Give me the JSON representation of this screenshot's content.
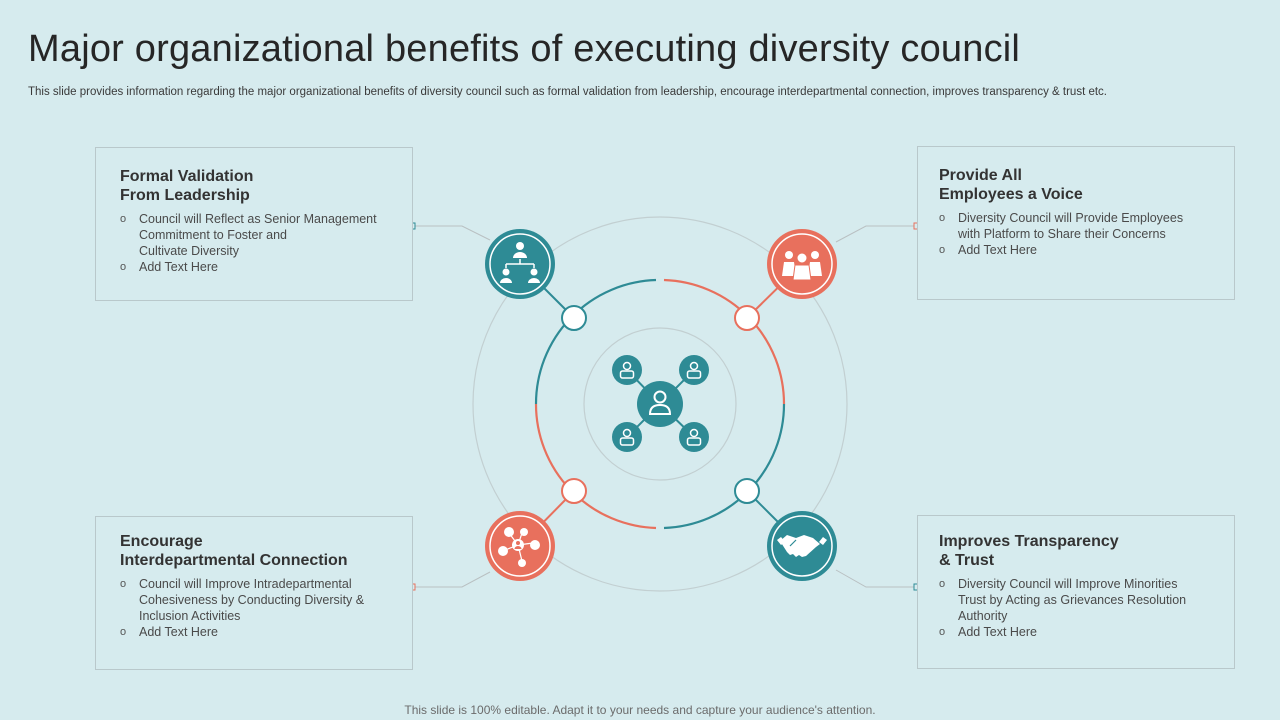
{
  "header": {
    "title": "Major organizational benefits of executing diversity council",
    "subtitle": "This slide provides information regarding the major organizational benefits of diversity council such as formal validation from leadership, encourage interdepartmental connection, improves transparency & trust etc."
  },
  "cards": [
    {
      "title": "Formal Validation\nFrom Leadership",
      "bullets": [
        "Council will Reflect as Senior Management\nCommitment to Foster and\nCultivate Diversity",
        "Add Text Here"
      ],
      "icon": "organization-chart-icon"
    },
    {
      "title": "Provide All\nEmployees a Voice",
      "bullets": [
        "Diversity Council will Provide Employees\nwith Platform to Share their Concerns",
        "Add Text Here"
      ],
      "icon": "team-group-icon"
    },
    {
      "title": "Encourage\nInterdepartmental Connection",
      "bullets": [
        "Council will Improve Intradepartmental\nCohesiveness by Conducting Diversity &\nInclusion Activities",
        "Add Text Here"
      ],
      "icon": "network-people-icon"
    },
    {
      "title": "Improves Transparency\n& Trust",
      "bullets": [
        "Diversity Council will Improve Minorities\nTrust by Acting as Grievances Resolution\nAuthority",
        "Add Text Here"
      ],
      "icon": "handshake-icon"
    }
  ],
  "footer": {
    "note": "This slide is 100% editable. Adapt it to your needs and capture your audience's attention."
  },
  "colors": {
    "background": "#d6ebee",
    "teal": "#2e8b95",
    "coral": "#e8705d",
    "outline": "#b9c8cb"
  }
}
